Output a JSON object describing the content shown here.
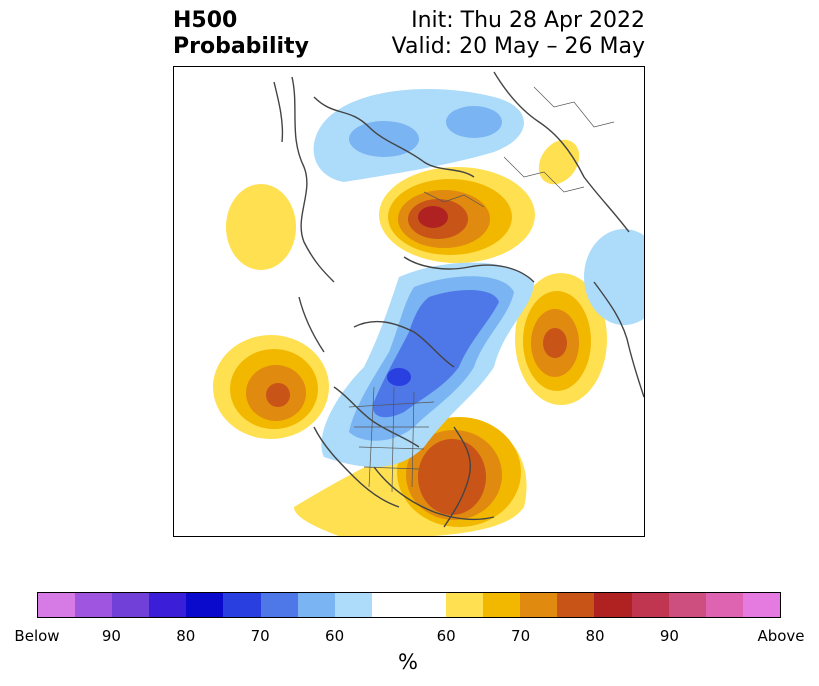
{
  "header": {
    "title_line1": "H500",
    "title_line2": "Probability",
    "init": "Init: Thu 28 Apr 2022",
    "valid": "Valid: 20 May – 26 May"
  },
  "colorbar": {
    "colors": [
      "#d67ae6",
      "#a055e0",
      "#7040d8",
      "#3a1ed8",
      "#0a0acc",
      "#2a3fe0",
      "#4e78e8",
      "#7ab4f2",
      "#acdcfa",
      "#ffffff",
      "#ffffff",
      "#ffe050",
      "#f2b800",
      "#e08a10",
      "#c85418",
      "#b02222",
      "#c03550",
      "#cd4f80",
      "#de63b0",
      "#e57ae0"
    ],
    "labels": [
      "Below",
      "90",
      "80",
      "70",
      "60",
      "60",
      "70",
      "80",
      "90",
      "Above"
    ],
    "units": "%"
  }
}
